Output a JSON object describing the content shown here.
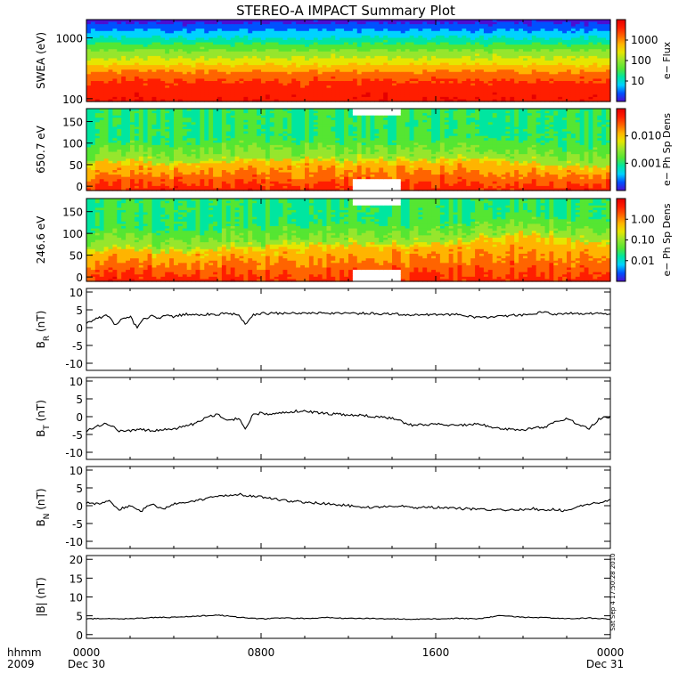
{
  "title": "STEREO-A IMPACT Summary Plot",
  "footer": {
    "row1_label": "hhmm",
    "row2_label": "2009",
    "x_ticks": [
      "0000",
      "0800",
      "1600",
      "0000"
    ],
    "date_ticks": [
      "Dec 30",
      "Dec 31"
    ],
    "timestamp": "Sat Sep 4 17:50:28 2010"
  },
  "colors": {
    "trace": "#000000",
    "colormap": [
      "#4b0fd2",
      "#0050ff",
      "#00d2ff",
      "#00e6a0",
      "#55e632",
      "#96e62d",
      "#e6e600",
      "#ffb400",
      "#ff6400",
      "#ff1e00",
      "#e60000"
    ]
  },
  "chart_data": [
    {
      "type": "heatmap",
      "ylabel": "SWEA (eV)",
      "ylog": true,
      "yticks": [
        "1000",
        "100"
      ],
      "colorbar_label": "e− Flux",
      "colorbar_ticks": [
        "1000",
        "100",
        "10"
      ],
      "x_range_hours": [
        0,
        24
      ],
      "y_range": [
        90,
        2000
      ],
      "description_profile": {
        "y": [
          100,
          200,
          400,
          700,
          1000,
          1500,
          2000
        ],
        "level": [
          0.98,
          0.9,
          0.65,
          0.45,
          0.3,
          0.15,
          0.05
        ]
      }
    },
    {
      "type": "heatmap",
      "ylabel": "650.7 eV",
      "yticks": [
        "150",
        "100",
        "50",
        "0"
      ],
      "y_range": [
        -10,
        180
      ],
      "colorbar_label": "e− Ph Sp Dens",
      "colorbar_ticks": [
        "0.010",
        "0.001"
      ],
      "data_gap_hours": [
        12.2,
        14.3
      ],
      "strahl_angle_deg": [
        55,
        58,
        60,
        55,
        50,
        55,
        58,
        60,
        60,
        62,
        62,
        60,
        58,
        60,
        60,
        60,
        60,
        62,
        65,
        60,
        55,
        50,
        45,
        45,
        45
      ]
    },
    {
      "type": "heatmap",
      "ylabel": "246.6 eV",
      "yticks": [
        "150",
        "100",
        "50",
        "0"
      ],
      "y_range": [
        -10,
        180
      ],
      "colorbar_label": "e− Ph Sp Dens",
      "colorbar_ticks": [
        "1.00",
        "0.10",
        "0.01"
      ],
      "data_gap_hours": [
        12.2,
        14.3
      ],
      "strahl_angle_deg": [
        60,
        62,
        65,
        60,
        58,
        62,
        65,
        68,
        70,
        75,
        75,
        75,
        75,
        75,
        75,
        75,
        75,
        78,
        90,
        95,
        100,
        95,
        85,
        80,
        80
      ]
    },
    {
      "type": "line",
      "ylabel": "B_R (nT)",
      "ylabel_main": "B",
      "ylabel_sub": "R",
      "ylabel_unit": "(nT)",
      "ylim": [
        -12,
        11
      ],
      "yticks": [
        "10",
        "5",
        "0",
        "-5",
        "-10"
      ],
      "x": [
        0,
        0.5,
        1,
        1.3,
        1.6,
        2,
        2.3,
        2.6,
        3,
        3.3,
        3.6,
        4,
        4.5,
        5,
        5.5,
        6,
        6.5,
        7,
        7.3,
        7.6,
        8,
        8.5,
        9,
        10,
        11,
        12,
        13,
        14,
        15,
        16,
        17,
        18,
        19,
        20,
        20.5,
        21,
        21.5,
        22,
        23,
        24
      ],
      "values": [
        1.5,
        2.5,
        3.5,
        0.5,
        2.5,
        3.2,
        0,
        2.5,
        3.2,
        2.5,
        3.5,
        3,
        3.8,
        3.5,
        3.8,
        3.7,
        4.1,
        3.5,
        1,
        3.5,
        4,
        4,
        4,
        4,
        4.1,
        4,
        4,
        3.8,
        3.5,
        3.6,
        3.7,
        2.8,
        3.2,
        3.6,
        4,
        4.3,
        3.6,
        4,
        4,
        3.8
      ]
    },
    {
      "type": "line",
      "ylabel": "B_T (nT)",
      "ylabel_main": "B",
      "ylabel_sub": "T",
      "ylabel_unit": "(nT)",
      "ylim": [
        -12,
        11
      ],
      "yticks": [
        "10",
        "5",
        "0",
        "-5",
        "-10"
      ],
      "x": [
        0,
        0.5,
        1,
        1.5,
        2,
        2.5,
        3,
        3.5,
        4,
        4.5,
        5,
        5.5,
        6,
        6.5,
        7,
        7.3,
        7.6,
        8,
        8.5,
        9,
        9.5,
        10,
        10.5,
        11,
        12,
        13,
        14,
        15,
        16,
        17,
        18,
        19,
        20,
        20.5,
        21,
        21.5,
        22,
        23,
        23.5,
        24
      ],
      "values": [
        -4,
        -2.5,
        -2,
        -4,
        -4,
        -3.5,
        -4,
        -3.5,
        -3.5,
        -2.5,
        -2,
        0,
        0.5,
        -1,
        -0.5,
        -3.5,
        0.5,
        1,
        0.5,
        1,
        1.5,
        1.5,
        1.2,
        0.8,
        0.5,
        0.2,
        -0.5,
        -2.5,
        -2,
        -2.5,
        -2,
        -3.5,
        -3.7,
        -3.2,
        -3,
        -1.5,
        -0.5,
        -3.5,
        -0.5,
        0
      ]
    },
    {
      "type": "line",
      "ylabel": "B_N (nT)",
      "ylabel_main": "B",
      "ylabel_sub": "N",
      "ylabel_unit": "(nT)",
      "ylim": [
        -12,
        11
      ],
      "yticks": [
        "10",
        "5",
        "0",
        "-5",
        "-10"
      ],
      "x": [
        0,
        0.5,
        1,
        1.5,
        2,
        2.5,
        3,
        3.5,
        4,
        4.5,
        5,
        5.5,
        6,
        6.5,
        7,
        7.5,
        8,
        8.5,
        9,
        10,
        11,
        12,
        13,
        13.5,
        14,
        15,
        16,
        17,
        18,
        19,
        20,
        20.5,
        21,
        21.5,
        22,
        23,
        24
      ],
      "values": [
        1,
        0.5,
        1.5,
        -1,
        0,
        -1.5,
        0.5,
        -1,
        0.5,
        1,
        1.5,
        2,
        2.5,
        3,
        3.2,
        2.8,
        2.5,
        2,
        1.5,
        1,
        0.5,
        0,
        -0.5,
        -0.5,
        0,
        -0.5,
        -0.5,
        -0.8,
        -1,
        -1.2,
        -1,
        -0.8,
        -1.5,
        -1,
        -1.5,
        0.5,
        1.5
      ]
    },
    {
      "type": "line",
      "ylabel": "|B| (nT)",
      "ylim": [
        -1,
        21
      ],
      "yticks": [
        "20",
        "15",
        "10",
        "5",
        "0"
      ],
      "x": [
        0,
        1,
        2,
        3,
        4,
        5,
        6,
        7,
        8,
        9,
        10,
        11,
        12,
        13,
        14,
        15,
        16,
        17,
        18,
        19,
        20,
        21,
        22,
        23,
        24
      ],
      "values": [
        4.2,
        4.3,
        4.2,
        4.5,
        4.6,
        4.9,
        5.2,
        4.6,
        4.2,
        4.4,
        4.3,
        4.5,
        4.3,
        4.3,
        4.2,
        4.1,
        4.2,
        4.3,
        4.2,
        5.1,
        4.6,
        4.5,
        4.2,
        4.4,
        4.1
      ]
    }
  ]
}
